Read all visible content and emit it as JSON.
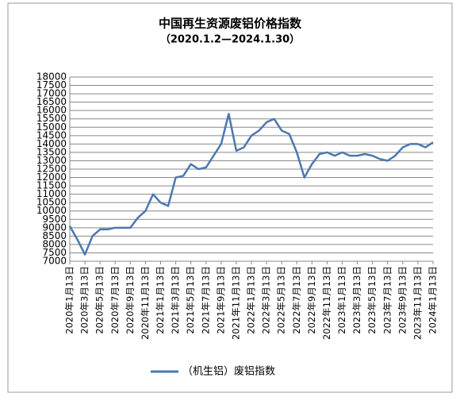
{
  "chart_data": {
    "type": "line",
    "title": "中国再生资源废铝价格指数",
    "subtitle": "（2020.1.2—2024.1.30）",
    "categories": [
      "2020年1月13日",
      null,
      "2020年3月13日",
      null,
      "2020年5月13日",
      null,
      "2020年7月13日",
      null,
      "2020年9月13日",
      null,
      "2020年11月13日",
      null,
      "2021年1月13日",
      null,
      "2021年3月13日",
      null,
      "2021年5月13日",
      null,
      "2021年7月13日",
      null,
      "2021年9月13日",
      null,
      "2021年11月13日",
      null,
      "2022年1月13日",
      null,
      "2022年3月13日",
      null,
      "2022年5月13日",
      null,
      "2022年7月13日",
      null,
      "2022年9月13日",
      null,
      "2022年11月13日",
      null,
      "2023年1月13日",
      null,
      "2023年3月13日",
      null,
      "2023年5月13日",
      null,
      "2023年7月13日",
      null,
      "2023年9月13日",
      null,
      "2023年11月13日",
      null,
      "2024年1月13日"
    ],
    "series": [
      {
        "name": "（机生铝）废铝指数",
        "color": "#4a78b0",
        "values": [
          9100,
          8300,
          7400,
          8500,
          8900,
          8900,
          9000,
          9000,
          9000,
          9600,
          10000,
          11000,
          10500,
          10300,
          12000,
          12100,
          12800,
          12500,
          12600,
          13300,
          14000,
          15800,
          13600,
          13800,
          14500,
          14800,
          15300,
          15500,
          14800,
          14600,
          13500,
          12000,
          12800,
          13400,
          13500,
          13300,
          13500,
          13300,
          13300,
          13400,
          13300,
          13100,
          13000,
          13300,
          13800,
          14000,
          14000,
          13800,
          14100
        ]
      }
    ],
    "ylim": [
      7000,
      18000
    ],
    "yticks": [
      7000,
      7500,
      8000,
      8500,
      9000,
      9500,
      10000,
      10500,
      11000,
      11500,
      12000,
      12500,
      13000,
      13500,
      14000,
      14500,
      15000,
      15500,
      16000,
      16500,
      17000,
      17500,
      18000
    ],
    "grid": true
  }
}
